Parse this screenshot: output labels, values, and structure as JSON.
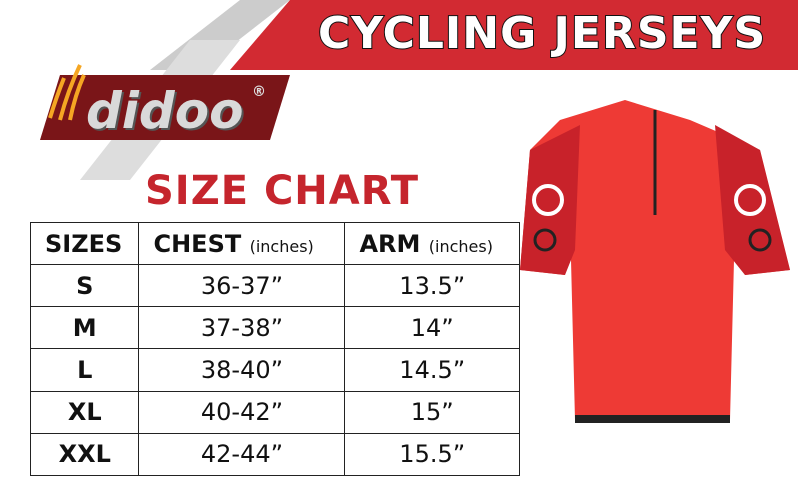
{
  "header": {
    "title": "CYCLING JERSEYS"
  },
  "logo": {
    "text": "didoo",
    "mark": "®"
  },
  "size_chart": {
    "title": "SIZE CHART",
    "columns": [
      {
        "label": "SIZES"
      },
      {
        "label": "CHEST",
        "unit": "(inches)"
      },
      {
        "label": "ARM",
        "unit": "(inches)"
      }
    ],
    "rows": [
      [
        "S",
        "36-37”",
        "13.5”"
      ],
      [
        "M",
        "37-38”",
        "14”"
      ],
      [
        "L",
        "38-40”",
        "14.5”"
      ],
      [
        "XL",
        "40-42”",
        "15”"
      ],
      [
        "XXL",
        "42-44”",
        "15.5”"
      ]
    ]
  }
}
